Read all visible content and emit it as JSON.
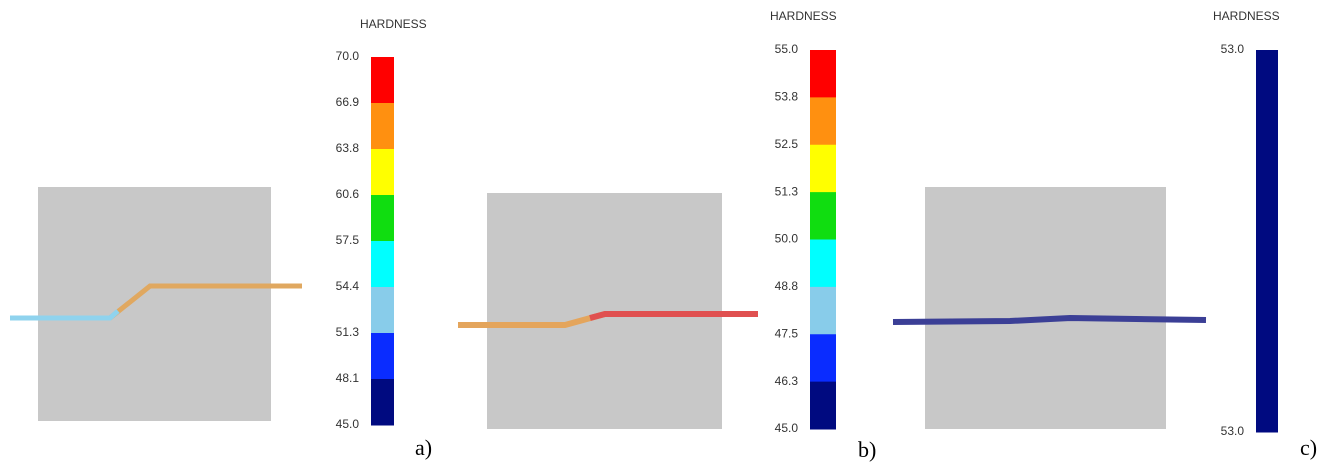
{
  "panels": [
    {
      "title": "HARDNESS",
      "label": "a)",
      "ticks": [
        "70.0",
        "66.9",
        "63.8",
        "60.6",
        "57.5",
        "54.4",
        "51.3",
        "48.1",
        "45.0"
      ]
    },
    {
      "title": "HARDNESS",
      "label": "b)",
      "ticks": [
        "55.0",
        "53.8",
        "52.5",
        "51.3",
        "50.0",
        "48.8",
        "47.5",
        "46.3",
        "45.0"
      ]
    },
    {
      "title": "HARDNESS",
      "label": "c)",
      "ticks": [
        "53.0",
        "53.0"
      ]
    }
  ]
}
